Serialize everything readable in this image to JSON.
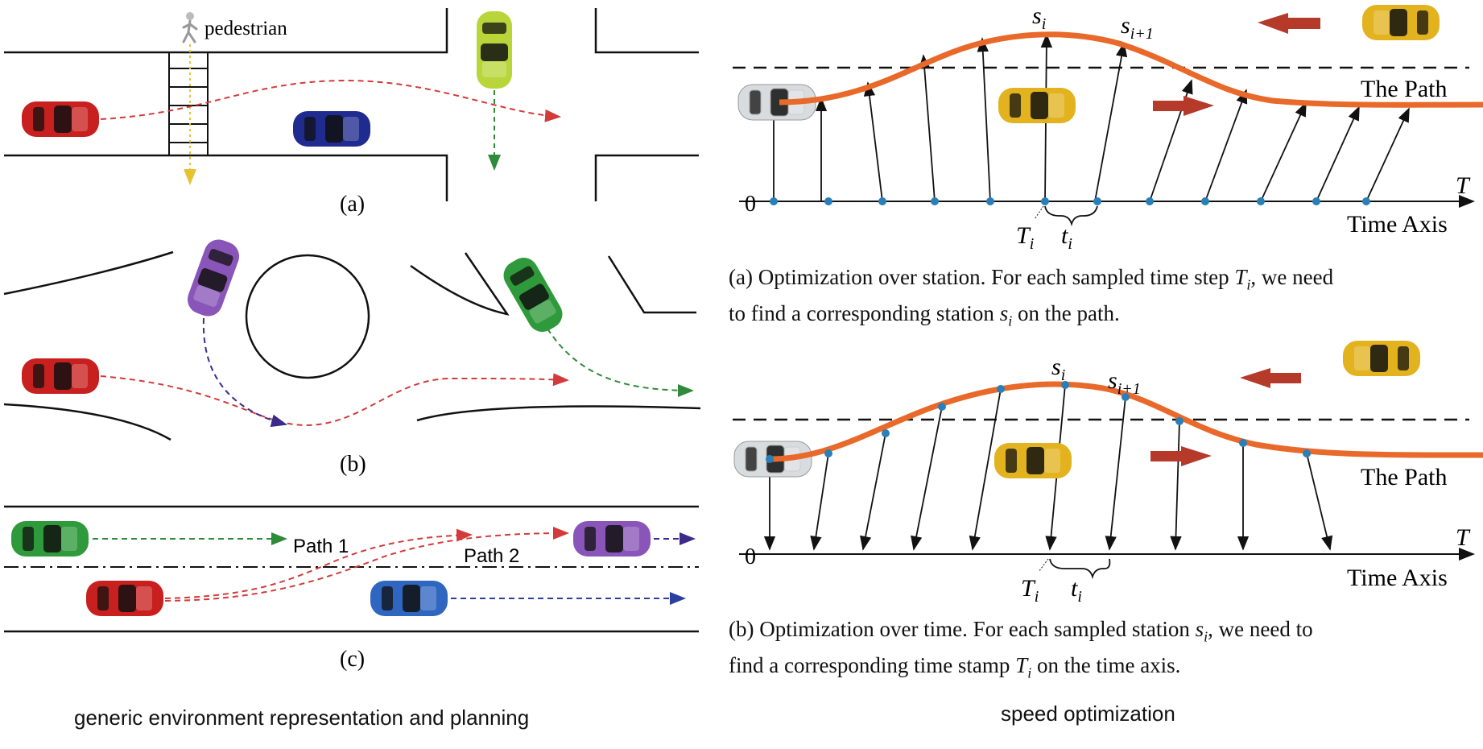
{
  "left": {
    "panel_a": {
      "pedestrian_label": "pedestrian",
      "label": "(a)"
    },
    "panel_b": {
      "label": "(b)"
    },
    "panel_c": {
      "path1_label": "Path 1",
      "path2_label": "Path 2",
      "label": "(c)"
    },
    "bottom_title": "generic environment representation and planning"
  },
  "right": {
    "diagram_a": {
      "s_i": "s",
      "s_i_sub": "i",
      "s_ip1": "s",
      "s_ip1_sub": "i+1",
      "path_label": "The Path",
      "axis_T": "T",
      "zero": "0",
      "T_i": "T",
      "T_i_sub": "i",
      "t_i": "t",
      "t_i_sub": "i",
      "time_axis_label": "Time Axis",
      "caption_1": "(a) Optimization over station. For each sampled time step",
      "caption_var1": "T",
      "caption_var1_sub": "i",
      "caption_2": ", we need",
      "caption_3": "to find a corresponding station",
      "caption_var2": "s",
      "caption_var2_sub": "i",
      "caption_4": "on the path."
    },
    "diagram_b": {
      "s_i": "s",
      "s_i_sub": "i",
      "s_ip1": "s",
      "s_ip1_sub": "i+1",
      "path_label": "The Path",
      "axis_T": "T",
      "zero": "0",
      "T_i": "T",
      "T_i_sub": "i",
      "t_i": "t",
      "t_i_sub": "i",
      "time_axis_label": "Time Axis",
      "caption_1": "(b) Optimization over time. For each sampled station",
      "caption_var1": "s",
      "caption_var1_sub": "i",
      "caption_2": ", we need to",
      "caption_3": "find a corresponding time stamp",
      "caption_var2": "T",
      "caption_var2_sub": "i",
      "caption_4": "on the time axis."
    },
    "bottom_title": "speed optimization"
  },
  "colors": {
    "red_car": "#c8201f",
    "blue_car": "#1f2b8f",
    "lime_car": "#b8d63a",
    "purple_car": "#8a55b8",
    "green_car": "#2f9a3b",
    "light_blue_car": "#2f66c0",
    "yellow_car": "#e2b31e",
    "silver_car": "#d9dcdf",
    "path_orange": "#e8692a",
    "dot_blue": "#2a7fb8",
    "arrow_red": "#b53a2a",
    "red_traj": "#d33a3a",
    "green_traj": "#2f8a3b",
    "yellow_traj": "#e6c230",
    "purple_traj": "#3b2a8a",
    "blue_traj": "#2a3fa0"
  }
}
